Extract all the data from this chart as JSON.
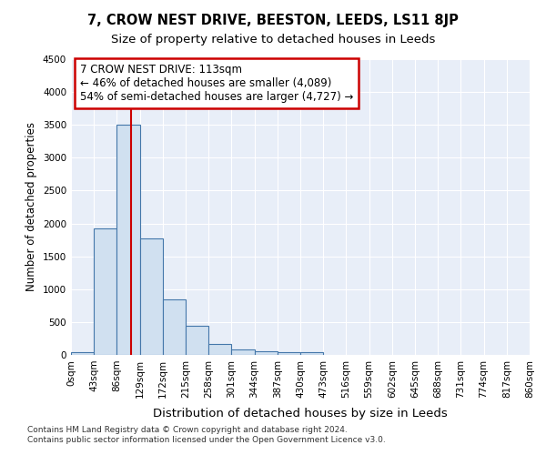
{
  "title": "7, CROW NEST DRIVE, BEESTON, LEEDS, LS11 8JP",
  "subtitle": "Size of property relative to detached houses in Leeds",
  "xlabel": "Distribution of detached houses by size in Leeds",
  "ylabel": "Number of detached properties",
  "bin_edges": [
    0,
    43,
    86,
    129,
    172,
    215,
    258,
    301,
    344,
    387,
    430,
    473,
    516,
    559,
    602,
    645,
    688,
    731,
    774,
    817,
    860
  ],
  "bin_counts": [
    40,
    1920,
    3500,
    1775,
    850,
    450,
    165,
    90,
    55,
    45,
    35,
    0,
    0,
    0,
    0,
    0,
    0,
    0,
    0,
    0
  ],
  "bar_facecolor": "#d0e0f0",
  "bar_edgecolor": "#4477aa",
  "property_size": 113,
  "property_line_color": "#cc0000",
  "annotation_line1": "7 CROW NEST DRIVE: 113sqm",
  "annotation_line2": "← 46% of detached houses are smaller (4,089)",
  "annotation_line3": "54% of semi-detached houses are larger (4,727) →",
  "annotation_box_color": "#cc0000",
  "ylim": [
    0,
    4500
  ],
  "yticks": [
    0,
    500,
    1000,
    1500,
    2000,
    2500,
    3000,
    3500,
    4000,
    4500
  ],
  "background_color": "#e8eef8",
  "grid_color": "#ffffff",
  "footer_text": "Contains HM Land Registry data © Crown copyright and database right 2024.\nContains public sector information licensed under the Open Government Licence v3.0.",
  "title_fontsize": 10.5,
  "subtitle_fontsize": 9.5,
  "xlabel_fontsize": 9.5,
  "ylabel_fontsize": 8.5,
  "annotation_fontsize": 8.5,
  "tick_fontsize": 7.5,
  "footer_fontsize": 6.5
}
